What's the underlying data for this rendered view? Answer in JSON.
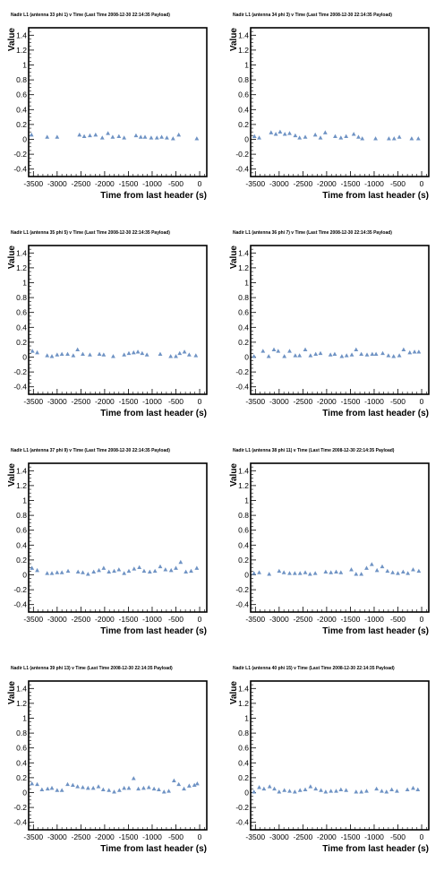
{
  "chart_data": [
    {
      "type": "scatter",
      "title": "Nadir L1 (antenna 33 phi 1) v Time (Last Time 2008-12-30 22:14:35 Payload)",
      "xlabel": "Time from last header (s)",
      "ylabel": "Value",
      "xlim": [
        -3600,
        150
      ],
      "ylim": [
        -0.5,
        1.5
      ],
      "xticks": [
        "-3500",
        "-3000",
        "-2500",
        "-2000",
        "-1500",
        "-1000",
        "-500",
        "0"
      ],
      "yticks": [
        "-0.4",
        "-0.2",
        "0",
        "0.2",
        "0.4",
        "0.6",
        "0.8",
        "1",
        "1.2",
        "1.4"
      ],
      "marker_color": "#6f93c4",
      "x": [
        -3540,
        -3210,
        -3000,
        -2530,
        -2430,
        -2310,
        -2190,
        -2050,
        -1930,
        -1830,
        -1700,
        -1590,
        -1340,
        -1240,
        -1150,
        -1020,
        -900,
        -800,
        -690,
        -560,
        -440,
        -60
      ],
      "y": [
        0.06,
        0.03,
        0.03,
        0.06,
        0.04,
        0.05,
        0.06,
        0.02,
        0.08,
        0.03,
        0.04,
        0.02,
        0.05,
        0.03,
        0.03,
        0.02,
        0.02,
        0.03,
        0.02,
        0.01,
        0.06,
        0.01
      ]
    },
    {
      "type": "scatter",
      "title": "Nadir L1 (antenna 34 phi 3) v Time (Last Time 2008-12-30 22:14:35 Payload)",
      "xlabel": "Time from last header (s)",
      "ylabel": "Value",
      "xlim": [
        -3600,
        150
      ],
      "ylim": [
        -0.5,
        1.5
      ],
      "xticks": [
        "-3500",
        "-3000",
        "-2500",
        "-2000",
        "-1500",
        "-1000",
        "-500",
        "0"
      ],
      "yticks": [
        "-0.4",
        "-0.2",
        "0",
        "0.2",
        "0.4",
        "0.6",
        "0.8",
        "1",
        "1.2",
        "1.4"
      ],
      "marker_color": "#6f93c4",
      "x": [
        -3520,
        -3420,
        -3170,
        -3070,
        -2980,
        -2880,
        -2780,
        -2660,
        -2570,
        -2450,
        -2240,
        -2130,
        -2030,
        -1820,
        -1700,
        -1590,
        -1430,
        -1330,
        -1250,
        -970,
        -690,
        -580,
        -470,
        -210,
        -70
      ],
      "y": [
        0.04,
        0.02,
        0.09,
        0.07,
        0.1,
        0.07,
        0.08,
        0.05,
        0.02,
        0.03,
        0.06,
        0.02,
        0.09,
        0.04,
        0.02,
        0.04,
        0.07,
        0.03,
        0.01,
        0.01,
        0.01,
        0.01,
        0.03,
        0.01,
        0.01
      ]
    },
    {
      "type": "scatter",
      "title": "Nadir L1 (antenna 35 phi 5) v Time (Last Time 2008-12-30 22:14:35 Payload)",
      "xlabel": "Time from last header (s)",
      "ylabel": "Value",
      "xlim": [
        -3600,
        150
      ],
      "ylim": [
        -0.5,
        1.5
      ],
      "xticks": [
        "-3500",
        "-3000",
        "-2500",
        "-2000",
        "-1500",
        "-1000",
        "-500",
        "0"
      ],
      "yticks": [
        "-0.4",
        "-0.2",
        "0",
        "0.2",
        "0.4",
        "0.6",
        "0.8",
        "1",
        "1.2",
        "1.4"
      ],
      "marker_color": "#6f93c4",
      "x": [
        -3520,
        -3420,
        -3210,
        -3110,
        -3000,
        -2900,
        -2780,
        -2660,
        -2570,
        -2460,
        -2310,
        -2110,
        -2020,
        -1820,
        -1590,
        -1490,
        -1390,
        -1300,
        -1210,
        -1110,
        -830,
        -610,
        -500,
        -420,
        -320,
        -220,
        -80
      ],
      "y": [
        0.08,
        0.06,
        0.02,
        0.01,
        0.03,
        0.04,
        0.04,
        0.02,
        0.1,
        0.04,
        0.03,
        0.04,
        0.03,
        0.01,
        0.03,
        0.05,
        0.06,
        0.07,
        0.05,
        0.03,
        0.04,
        0.01,
        0.01,
        0.05,
        0.07,
        0.03,
        0.02
      ]
    },
    {
      "type": "scatter",
      "title": "Nadir L1 (antenna 36 phi 7) v Time (Last Time 2008-12-30 22:14:35 Payload)",
      "xlabel": "Time from last header (s)",
      "ylabel": "Value",
      "xlim": [
        -3600,
        150
      ],
      "ylim": [
        -0.5,
        1.5
      ],
      "xticks": [
        "-3500",
        "-3000",
        "-2500",
        "-2000",
        "-1500",
        "-1000",
        "-500",
        "0"
      ],
      "yticks": [
        "-0.4",
        "-0.2",
        "0",
        "0.2",
        "0.4",
        "0.6",
        "0.8",
        "1",
        "1.2",
        "1.4"
      ],
      "marker_color": "#6f93c4",
      "x": [
        -3530,
        -3340,
        -3220,
        -3110,
        -3020,
        -2890,
        -2780,
        -2660,
        -2570,
        -2450,
        -2340,
        -2230,
        -2130,
        -1920,
        -1830,
        -1680,
        -1580,
        -1470,
        -1380,
        -1270,
        -1150,
        -1040,
        -960,
        -820,
        -700,
        -590,
        -470,
        -380,
        -250,
        -150,
        -60
      ],
      "y": [
        0.01,
        0.08,
        0.01,
        0.1,
        0.08,
        0.01,
        0.08,
        0.02,
        0.02,
        0.1,
        0.02,
        0.04,
        0.05,
        0.03,
        0.04,
        0.01,
        0.02,
        0.03,
        0.1,
        0.04,
        0.03,
        0.04,
        0.04,
        0.05,
        0.02,
        0.01,
        0.02,
        0.1,
        0.06,
        0.07,
        0.07
      ]
    },
    {
      "type": "scatter",
      "title": "Nadir L1 (antenna 37 phi 9) v Time (Last Time 2008-12-30 22:14:35 Payload)",
      "xlabel": "Time from last header (s)",
      "ylabel": "Value",
      "xlim": [
        -3600,
        150
      ],
      "ylim": [
        -0.5,
        1.5
      ],
      "xticks": [
        "-3500",
        "-3000",
        "-2500",
        "-2000",
        "-1500",
        "-1000",
        "-500",
        "0"
      ],
      "yticks": [
        "-0.4",
        "-0.2",
        "0",
        "0.2",
        "0.4",
        "0.6",
        "0.8",
        "1",
        "1.2",
        "1.4"
      ],
      "marker_color": "#6f93c4",
      "x": [
        -3530,
        -3420,
        -3210,
        -3110,
        -3000,
        -2900,
        -2770,
        -2560,
        -2460,
        -2350,
        -2230,
        -2120,
        -2020,
        -1910,
        -1800,
        -1700,
        -1590,
        -1490,
        -1380,
        -1270,
        -1170,
        -1050,
        -940,
        -830,
        -720,
        -600,
        -500,
        -400,
        -290,
        -180,
        -60
      ],
      "y": [
        0.09,
        0.06,
        0.02,
        0.02,
        0.03,
        0.03,
        0.05,
        0.04,
        0.03,
        0.01,
        0.04,
        0.06,
        0.09,
        0.04,
        0.05,
        0.07,
        0.02,
        0.05,
        0.08,
        0.1,
        0.05,
        0.04,
        0.05,
        0.11,
        0.07,
        0.06,
        0.09,
        0.17,
        0.04,
        0.05,
        0.09
      ]
    },
    {
      "type": "scatter",
      "title": "Nadir L1 (antenna 38 phi 11) v Time (Last Time 2008-12-30 22:14:35 Payload)",
      "xlabel": "Time from last header (s)",
      "ylabel": "Value",
      "xlim": [
        -3600,
        150
      ],
      "ylim": [
        -0.5,
        1.5
      ],
      "xticks": [
        "-3500",
        "-3000",
        "-2500",
        "-2000",
        "-1500",
        "-1000",
        "-500",
        "0"
      ],
      "yticks": [
        "-0.4",
        "-0.2",
        "0",
        "0.2",
        "0.4",
        "0.6",
        "0.8",
        "1",
        "1.2",
        "1.4"
      ],
      "marker_color": "#6f93c4",
      "x": [
        -3530,
        -3420,
        -3210,
        -3000,
        -2900,
        -2780,
        -2670,
        -2560,
        -2450,
        -2350,
        -2240,
        -2020,
        -1910,
        -1800,
        -1700,
        -1480,
        -1380,
        -1270,
        -1160,
        -1050,
        -940,
        -830,
        -720,
        -610,
        -500,
        -390,
        -290,
        -180,
        -60
      ],
      "y": [
        0.02,
        0.03,
        0.01,
        0.05,
        0.03,
        0.02,
        0.02,
        0.02,
        0.03,
        0.01,
        0.02,
        0.04,
        0.03,
        0.04,
        0.03,
        0.07,
        0.01,
        0.01,
        0.09,
        0.14,
        0.06,
        0.11,
        0.05,
        0.03,
        0.02,
        0.04,
        0.02,
        0.07,
        0.05
      ]
    },
    {
      "type": "scatter",
      "title": "Nadir L1 (antenna 39 phi 13) v Time (Last Time 2008-12-30 22:14:35 Payload)",
      "xlabel": "Time from last header (s)",
      "ylabel": "Value",
      "xlim": [
        -3600,
        150
      ],
      "ylim": [
        -0.5,
        1.5
      ],
      "xticks": [
        "-3500",
        "-3000",
        "-2500",
        "-2000",
        "-1500",
        "-1000",
        "-500",
        "0"
      ],
      "yticks": [
        "-0.4",
        "-0.2",
        "0",
        "0.2",
        "0.4",
        "0.6",
        "0.8",
        "1",
        "1.2",
        "1.4"
      ],
      "marker_color": "#6f93c4",
      "x": [
        -3530,
        -3420,
        -3320,
        -3200,
        -3110,
        -3000,
        -2900,
        -2780,
        -2670,
        -2570,
        -2460,
        -2350,
        -2240,
        -2130,
        -2030,
        -1910,
        -1800,
        -1690,
        -1590,
        -1490,
        -1390,
        -1290,
        -1180,
        -1070,
        -960,
        -860,
        -750,
        -650,
        -540,
        -440,
        -330,
        -220,
        -110,
        -50
      ],
      "y": [
        0.12,
        0.11,
        0.04,
        0.05,
        0.06,
        0.03,
        0.03,
        0.11,
        0.1,
        0.08,
        0.07,
        0.06,
        0.06,
        0.08,
        0.04,
        0.03,
        0.01,
        0.03,
        0.06,
        0.06,
        0.19,
        0.05,
        0.06,
        0.07,
        0.05,
        0.04,
        0.01,
        0.02,
        0.16,
        0.11,
        0.05,
        0.09,
        0.1,
        0.12
      ]
    },
    {
      "type": "scatter",
      "title": "Nadir L1 (antenna 40 phi 15) v Time (Last Time 2008-12-30 22:14:35 Payload)",
      "xlabel": "Time from last header (s)",
      "ylabel": "Value",
      "xlim": [
        -3600,
        150
      ],
      "ylim": [
        -0.5,
        1.5
      ],
      "xticks": [
        "-3500",
        "-3000",
        "-2500",
        "-2000",
        "-1500",
        "-1000",
        "-500",
        "0"
      ],
      "yticks": [
        "-0.4",
        "-0.2",
        "0",
        "0.2",
        "0.4",
        "0.6",
        "0.8",
        "1",
        "1.2",
        "1.4"
      ],
      "marker_color": "#6f93c4",
      "x": [
        -3530,
        -3420,
        -3320,
        -3200,
        -3100,
        -3000,
        -2890,
        -2780,
        -2670,
        -2560,
        -2450,
        -2340,
        -2230,
        -2120,
        -2020,
        -1910,
        -1800,
        -1700,
        -1590,
        -1380,
        -1270,
        -1160,
        -950,
        -840,
        -740,
        -630,
        -520,
        -300,
        -180,
        -80
      ],
      "y": [
        0.01,
        0.07,
        0.05,
        0.08,
        0.05,
        0.01,
        0.03,
        0.02,
        0.01,
        0.03,
        0.04,
        0.08,
        0.05,
        0.03,
        0.01,
        0.02,
        0.02,
        0.04,
        0.03,
        0.01,
        0.01,
        0.02,
        0.05,
        0.02,
        0.01,
        0.04,
        0.02,
        0.04,
        0.06,
        0.04
      ]
    }
  ]
}
